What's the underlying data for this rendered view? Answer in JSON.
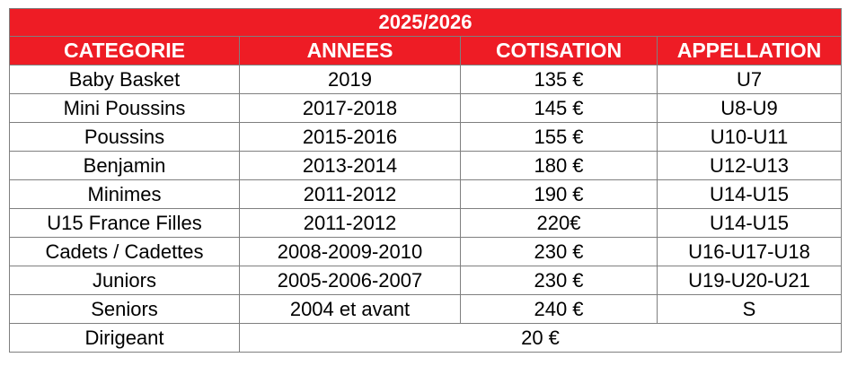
{
  "title": "2025/2026",
  "colors": {
    "header_bg": "#ee1c25",
    "header_text": "#ffffff",
    "border": "#7f7f7f"
  },
  "headers": [
    "CATEGORIE",
    "ANNEES",
    "COTISATION",
    "APPELLATION"
  ],
  "rows": [
    [
      "Baby Basket",
      "2019",
      "135 €",
      "U7"
    ],
    [
      "Mini Poussins",
      "2017-2018",
      "145 €",
      "U8-U9"
    ],
    [
      "Poussins",
      "2015-2016",
      "155 €",
      "U10-U11"
    ],
    [
      "Benjamin",
      "2013-2014",
      "180 €",
      "U12-U13"
    ],
    [
      "Minimes",
      "2011-2012",
      "190 €",
      "U14-U15"
    ],
    [
      "U15 France Filles",
      "2011-2012",
      "220€",
      "U14-U15"
    ],
    [
      "Cadets / Cadettes",
      "2008-2009-2010",
      "230 €",
      "U16-U17-U18"
    ],
    [
      "Juniors",
      "2005-2006-2007",
      "230 €",
      "U19-U20-U21"
    ],
    [
      "Seniors",
      "2004 et avant",
      "240 €",
      "S"
    ]
  ],
  "last_row": {
    "category": "Dirigeant",
    "fee": "20 €"
  }
}
